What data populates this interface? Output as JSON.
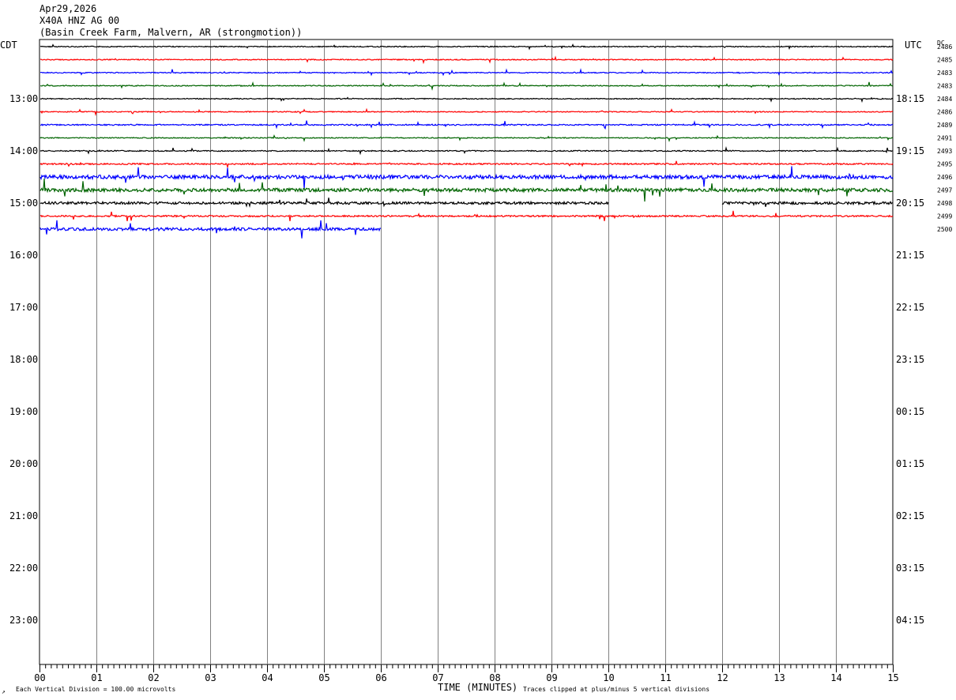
{
  "header": {
    "date": "Apr29,2026",
    "station": "X40A HNZ AG 00",
    "location": "(Basin Creek Farm, Malvern, AR (strongmotion))"
  },
  "footer": {
    "scale_note": "Each Vertical Division =  100.00 microvolts",
    "xlabel": "TIME (MINUTES)",
    "clip_note": "Traces clipped at plus/minus 5 vertical divisions"
  },
  "chart_data": {
    "type": "line",
    "title": "X40A HNZ AG 00",
    "left_axis_label": "CDT",
    "right_axis_label": "UTC",
    "dc_label": "DC",
    "xlabel": "TIME (MINUTES)",
    "xlim": [
      0,
      15
    ],
    "x_ticks": [
      "00",
      "01",
      "02",
      "03",
      "04",
      "05",
      "06",
      "07",
      "08",
      "09",
      "10",
      "11",
      "12",
      "13",
      "14",
      "15"
    ],
    "rows_per_hour": 4,
    "start_cdt_hour": 12.25,
    "left_hour_labels": [
      "13:00",
      "14:00",
      "15:00",
      "16:00",
      "17:00",
      "18:00",
      "19:00",
      "20:00",
      "21:00",
      "22:00",
      "23:00"
    ],
    "right_hour_labels": [
      "18:15",
      "19:15",
      "20:15",
      "21:15",
      "22:15",
      "23:15",
      "00:15",
      "01:15",
      "02:15",
      "03:15",
      "04:15"
    ],
    "trace_colors": [
      "#000000",
      "#ff0000",
      "#0000ff",
      "#006400"
    ],
    "traces": [
      {
        "dc": "2486",
        "end_min": 15,
        "noise": 0.6
      },
      {
        "dc": "2485",
        "end_min": 15,
        "noise": 0.6
      },
      {
        "dc": "2483",
        "end_min": 15,
        "noise": 0.6
      },
      {
        "dc": "2483",
        "end_min": 15,
        "noise": 0.6
      },
      {
        "dc": "2484",
        "end_min": 15,
        "noise": 0.6
      },
      {
        "dc": "2486",
        "end_min": 15,
        "noise": 0.6
      },
      {
        "dc": "2489",
        "end_min": 15,
        "noise": 0.8
      },
      {
        "dc": "2491",
        "end_min": 15,
        "noise": 0.6
      },
      {
        "dc": "2493",
        "end_min": 15,
        "noise": 0.7
      },
      {
        "dc": "2495",
        "end_min": 15,
        "noise": 0.9
      },
      {
        "dc": "2496",
        "end_min": 15,
        "noise": 2.4
      },
      {
        "dc": "2497",
        "end_min": 15,
        "noise": 2.2
      },
      {
        "dc": "2498",
        "end_min": 15,
        "noise": 1.6,
        "gap": [
          10,
          12
        ]
      },
      {
        "dc": "2499",
        "end_min": 15,
        "noise": 1.0
      },
      {
        "dc": "2500",
        "end_min": 6,
        "noise": 1.8
      }
    ]
  }
}
